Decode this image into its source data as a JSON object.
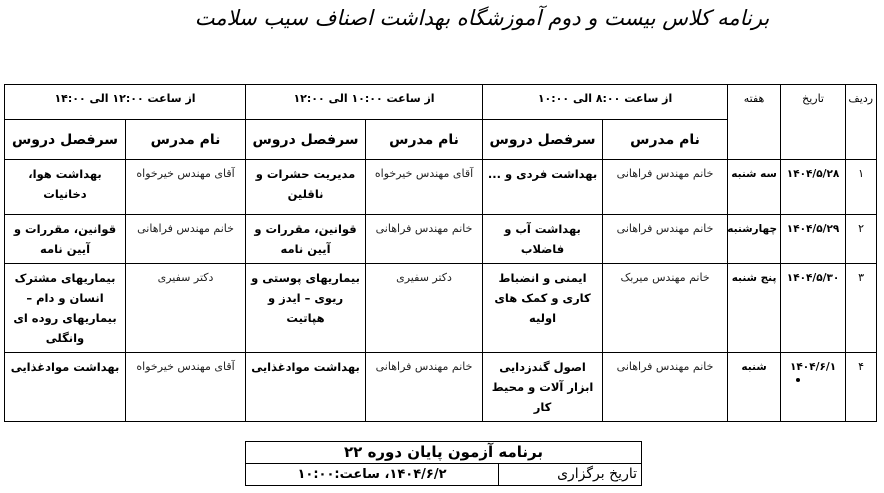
{
  "title": "برنامه کلاس بیست و دوم آموزشگاه بهداشت اصناف سیب سلامت",
  "schedule": {
    "headers": {
      "row": "ردیف",
      "date": "تاریخ",
      "day": "هفته",
      "teacher": "نام مدرس",
      "topic": "سرفصل دروس"
    },
    "slots": [
      "از ساعت ۸:۰۰ الی ۱۰:۰۰",
      "از ساعت ۱۰:۰۰ الی ۱۲:۰۰",
      "از ساعت ۱۲:۰۰ الی ۱۴:۰۰"
    ],
    "rows": [
      {
        "num": "۱",
        "date": "۱۴۰۴/۵/۲۸",
        "day": "سه شنبه",
        "cells": [
          {
            "teacher": "خانم مهندس فراهانی",
            "topic": "بهداشت فردی و ..."
          },
          {
            "teacher": "آقای مهندس خیرخواه",
            "topic": "مدیریت حشرات و ناقلین"
          },
          {
            "teacher": "آقای مهندس خیرخواه",
            "topic": "بهداشت هوا، دخانیات"
          }
        ]
      },
      {
        "num": "۲",
        "date": "۱۴۰۴/۵/۲۹",
        "day": "چهارشنبه",
        "cells": [
          {
            "teacher": "خانم مهندس فراهانی",
            "topic": "بهداشت آب و فاضلاب"
          },
          {
            "teacher": "خانم مهندس فراهانی",
            "topic": "قوانین، مقررات و آیین نامه"
          },
          {
            "teacher": "خانم مهندس فراهانی",
            "topic": "قوانین، مقررات و آیین نامه"
          }
        ]
      },
      {
        "num": "۳",
        "date": "۱۴۰۴/۵/۳۰",
        "day": "پنج شنبه",
        "cells": [
          {
            "teacher": "خانم مهندس میربک",
            "topic": "ایمنی و انضباط کاری و کمک های اولیه"
          },
          {
            "teacher": "دکتر سفیری",
            "topic": "بیماریهای پوستی و ریوی – ایدز و هپاتیت"
          },
          {
            "teacher": "دکتر سفیری",
            "topic": "بیماریهای مشترک انسان و دام – بیماریهای روده ای وانگلی"
          }
        ]
      },
      {
        "num": "۴",
        "date": "۱۴۰۴/۶/۱",
        "day": "شنبه",
        "cells": [
          {
            "teacher": "خانم مهندس فراهانی",
            "topic": "اصول گندزدایی ابزار آلات و محیط کار"
          },
          {
            "teacher": "خانم مهندس فراهانی",
            "topic": "بهداشت موادغذایی"
          },
          {
            "teacher": "آقای مهندس خیرخواه",
            "topic": "بهداشت موادغذایی"
          }
        ]
      }
    ]
  },
  "exam": {
    "title": "برنامه آزمون پایان دوره ۲۲",
    "label": "تاریخ برگزاری",
    "value": "۱۴۰۴/۶/۲، ساعت:۱۰:۰۰"
  }
}
